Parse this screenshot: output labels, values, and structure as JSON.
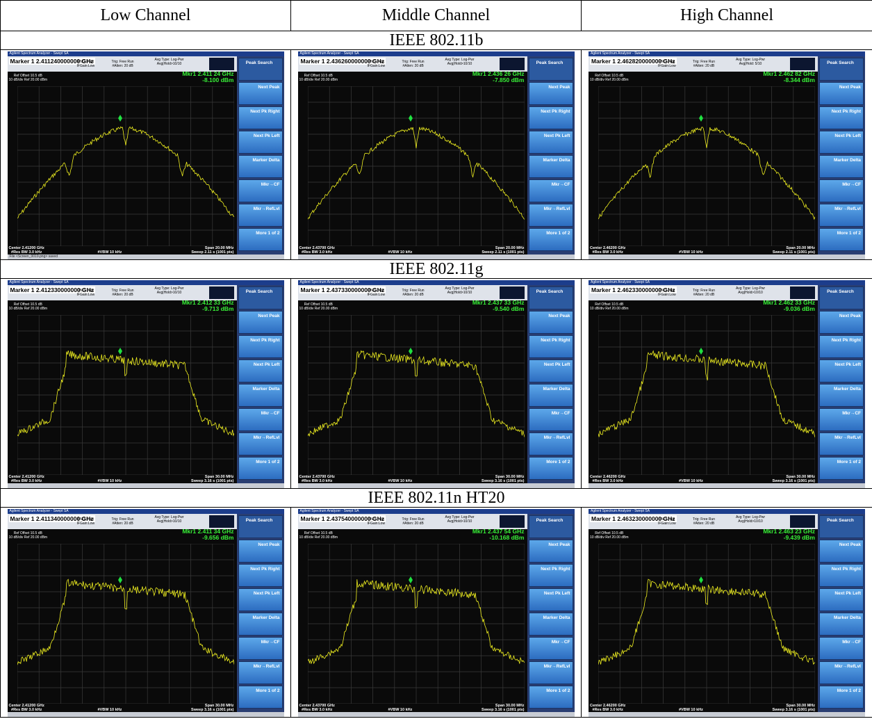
{
  "headers": [
    "Low Channel",
    "Middle Channel",
    "High Channel"
  ],
  "window_title": "Agilent Spectrum Analyzer - Swept SA",
  "common": {
    "ref_offset": "Ref Offset 10.5 dB",
    "ref_level": "10 dB/div   Ref 20.00 dBm",
    "res_bw": "#Res BW 3.0 kHz",
    "vbw": "#VBW 10 kHz",
    "softkeys": [
      "Peak Search",
      "Next Peak",
      "Next Pk Right",
      "Next Pk Left",
      "Marker Delta",
      "Mkr→CF",
      "Mkr→RefLvl",
      "More 1 of 2"
    ],
    "trig": "Trig: Free Run",
    "atten": "#Atten: 20 dB",
    "pno": "PNO: Fast",
    "ifgain": "IFGain:Low",
    "avg_type": "Avg Type: Log-Pwr"
  },
  "sections": [
    {
      "standard": "IEEE 802.11b",
      "shape": "dsss",
      "plots": [
        {
          "marker_freq": "Marker 1 2.411240000000 GHz",
          "mkr_label": "Mkr1 2.411 24 GHz",
          "mkr_level": "-8.100 dBm",
          "center": "Center 2.41200 GHz",
          "span": "Span 20.00 MHz",
          "sweep": "Sweep  2.11 s (1001 pts)",
          "avg_hold": "Avg|Hold>10/10",
          "status": "File <Screen_0019.png> saved"
        },
        {
          "marker_freq": "Marker 1 2.436260000000 GHz",
          "mkr_label": "Mkr1 2.436 26 GHz",
          "mkr_level": "-7.850 dBm",
          "center": "Center 2.43700 GHz",
          "span": "Span 20.00 MHz",
          "sweep": "Sweep  2.11 s (1001 pts)",
          "avg_hold": "Avg|Hold>10/10",
          "status": ""
        },
        {
          "marker_freq": "Marker 1 2.462820000000 GHz",
          "mkr_label": "Mkr1 2.462 82 GHz",
          "mkr_level": "-8.344 dBm",
          "center": "Center 2.46200 GHz",
          "span": "Span 20.00 MHz",
          "sweep": "Sweep  2.11 s (1001 pts)",
          "avg_hold": "Avg|Hold: 5/10",
          "status": ""
        }
      ]
    },
    {
      "standard": "IEEE 802.11g",
      "shape": "ofdm",
      "plots": [
        {
          "marker_freq": "Marker 1 2.412330000000 GHz",
          "mkr_label": "Mkr1 2.412 33 GHz",
          "mkr_level": "-9.713 dBm",
          "center": "Center 2.41200 GHz",
          "span": "Span 30.00 MHz",
          "sweep": "Sweep  3.16 s (1001 pts)",
          "avg_hold": "Avg|Hold>10/10",
          "status": ""
        },
        {
          "marker_freq": "Marker 1 2.437330000000 GHz",
          "mkr_label": "Mkr1 2.437 33 GHz",
          "mkr_level": "-9.540 dBm",
          "center": "Center 2.43700 GHz",
          "span": "Span 30.00 MHz",
          "sweep": "Sweep  3.16 s (1001 pts)",
          "avg_hold": "Avg|Hold>10/10",
          "status": ""
        },
        {
          "marker_freq": "Marker 1 2.462330000000 GHz",
          "mkr_label": "Mkr1 2.462 33 GHz",
          "mkr_level": "-9.036 dBm",
          "center": "Center 2.46200 GHz",
          "span": "Span 30.00 MHz",
          "sweep": "Sweep  3.16 s (1001 pts)",
          "avg_hold": "Avg|Hold>10/10",
          "status": ""
        }
      ]
    },
    {
      "standard": "IEEE 802.11n HT20",
      "shape": "ofdm",
      "plots": [
        {
          "marker_freq": "Marker 1 2.411340000000 GHz",
          "mkr_label": "Mkr1 2.411 34 GHz",
          "mkr_level": "-9.656 dBm",
          "center": "Center 2.41200 GHz",
          "span": "Span 30.00 MHz",
          "sweep": "Sweep  3.16 s (1001 pts)",
          "avg_hold": "Avg|Hold>10/10",
          "status": ""
        },
        {
          "marker_freq": "Marker 1 2.437540000000 GHz",
          "mkr_label": "Mkr1 2.437 54 GHz",
          "mkr_level": "-10.168 dBm",
          "center": "Center 2.43700 GHz",
          "span": "Span 30.00 MHz",
          "sweep": "Sweep  3.16 s (1001 pts)",
          "avg_hold": "Avg|Hold>10/10",
          "status": ""
        },
        {
          "marker_freq": "Marker 1 2.463230000000 GHz",
          "mkr_label": "Mkr1 2.463 23 GHz",
          "mkr_level": "-9.439 dBm",
          "center": "Center 2.46200 GHz",
          "span": "Span 30.00 MHz",
          "sweep": "Sweep  3.16 s (1001 pts)",
          "avg_hold": "Avg|Hold>10/10",
          "status": ""
        }
      ]
    }
  ]
}
